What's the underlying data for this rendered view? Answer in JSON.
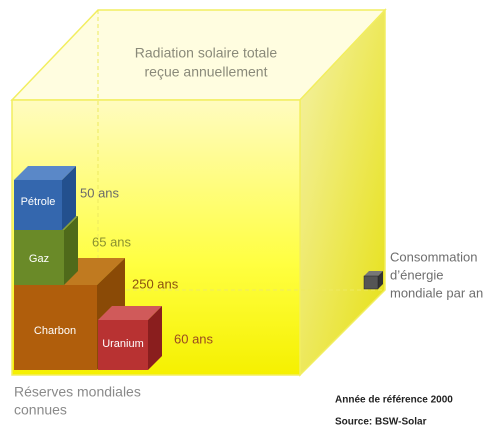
{
  "title": [
    "Radiation solaire totale",
    "reçue annuellement"
  ],
  "blocks": [
    {
      "label": "Pétrole",
      "duration": "50 ans"
    },
    {
      "label": "Gaz",
      "duration": "65 ans"
    },
    {
      "label": "Charbon",
      "duration": "250 ans"
    },
    {
      "label": "Uranium",
      "duration": "60 ans"
    }
  ],
  "consumption": [
    "Consommation",
    "d’énergie",
    "mondiale par an"
  ],
  "reserves": [
    "Réserves mondiales",
    "connues"
  ],
  "reference": "Année de référence 2000",
  "source": "Source: BSW-Solar"
}
